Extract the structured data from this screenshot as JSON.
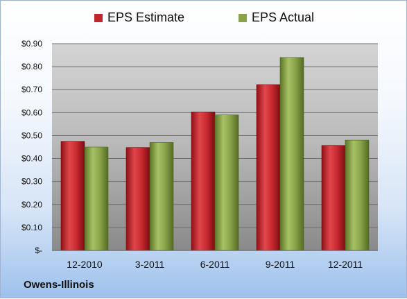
{
  "chart_data": {
    "type": "bar",
    "categories": [
      "12-2010",
      "3-2011",
      "6-2011",
      "9-2011",
      "12-2011"
    ],
    "series": [
      {
        "name": "EPS Estimate",
        "values": [
          0.475,
          0.448,
          0.603,
          0.722,
          0.457
        ],
        "color": "#c0262c"
      },
      {
        "name": "EPS Actual",
        "values": [
          0.45,
          0.47,
          0.59,
          0.84,
          0.48
        ],
        "color": "#8aa34a"
      }
    ],
    "ylim": [
      0,
      0.9
    ],
    "yticks": [
      0,
      0.1,
      0.2,
      0.3,
      0.4,
      0.5,
      0.6,
      0.7,
      0.8,
      0.9
    ],
    "ytick_labels": [
      "$-",
      "$0.10",
      "$0.20",
      "$0.30",
      "$0.40",
      "$0.50",
      "$0.60",
      "$0.70",
      "$0.80",
      "$0.90"
    ],
    "grid": true,
    "legend_position": "top-center"
  },
  "footer": {
    "company": "Owens-Illinois"
  }
}
